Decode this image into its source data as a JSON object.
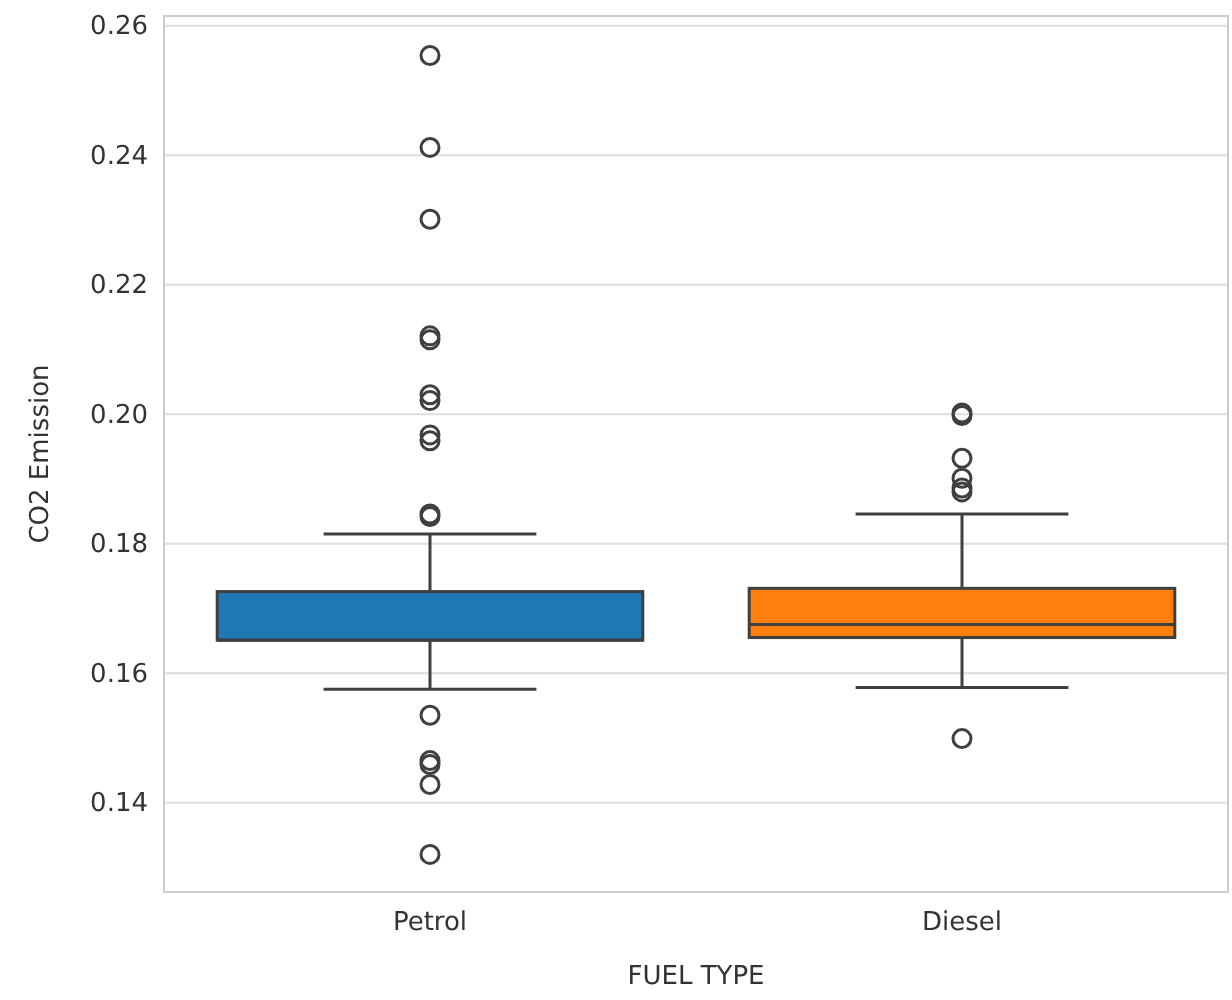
{
  "chart_data": {
    "type": "box",
    "xlabel": "FUEL TYPE",
    "ylabel": "CO2 Emission",
    "categories": [
      "Petrol",
      "Diesel"
    ],
    "series": [
      {
        "colors": [
          "#1f77b4",
          "#ff7f0e"
        ],
        "boxes": [
          {
            "low": 0.1575,
            "q1": 0.1651,
            "median": 0.1651,
            "q3": 0.1726,
            "high": 0.1815,
            "outliers": [
              0.2554,
              0.2412,
              0.2301,
              0.2121,
              0.2115,
              0.203,
              0.2021,
              0.1968,
              0.1959,
              0.1846,
              0.1842,
              0.1535,
              0.1465,
              0.1459,
              0.1428,
              0.132
            ]
          },
          {
            "low": 0.1578,
            "q1": 0.1655,
            "median": 0.1675,
            "q3": 0.1731,
            "high": 0.1846,
            "outliers": [
              0.2002,
              0.1998,
              0.1932,
              0.1901,
              0.1886,
              0.188,
              0.1499
            ]
          }
        ]
      }
    ],
    "ylim": [
      0.1262,
      0.2615
    ],
    "yticks": [
      0.14,
      0.16,
      0.18,
      {
        "value": 0.2,
        "label": "0.20"
      },
      0.22,
      0.24,
      0.26
    ],
    "grid": "y"
  }
}
